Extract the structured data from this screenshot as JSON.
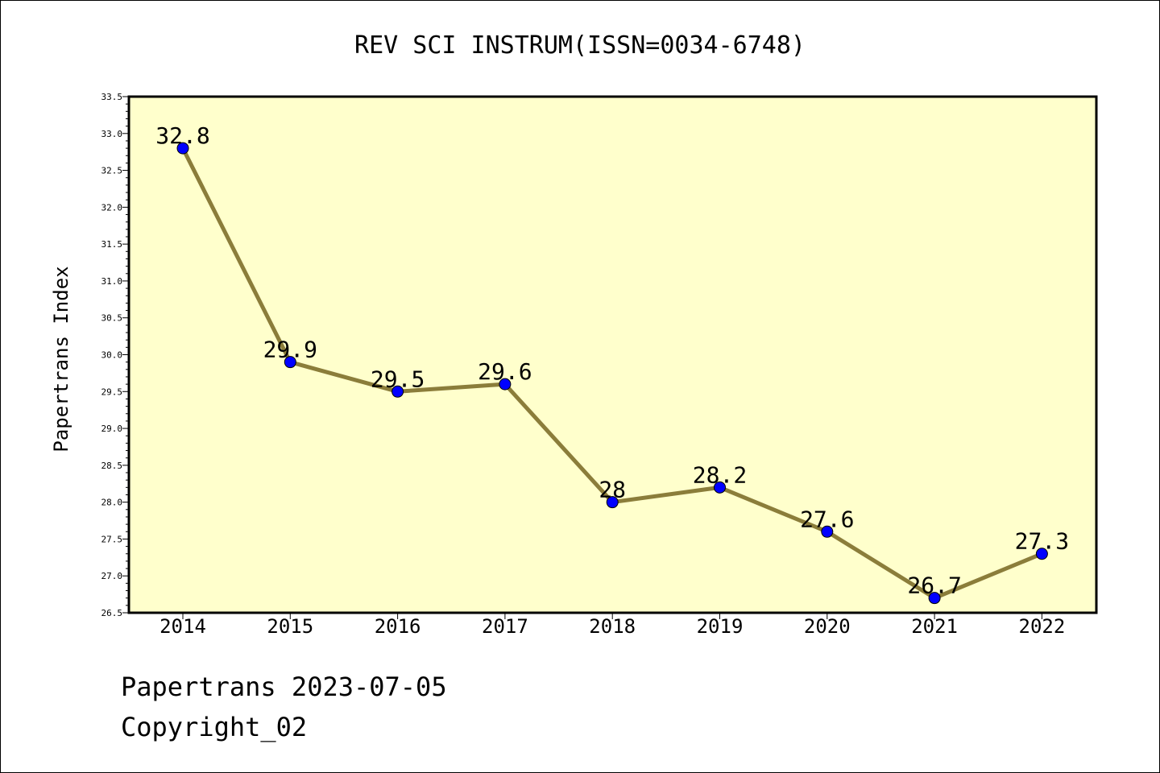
{
  "chart_data": {
    "type": "line",
    "title": "REV SCI INSTRUM(ISSN=0034-6748)",
    "xlabel": "",
    "ylabel": "Papertrans Index",
    "categories": [
      "2014",
      "2015",
      "2016",
      "2017",
      "2018",
      "2019",
      "2020",
      "2021",
      "2022"
    ],
    "series": [
      {
        "values": [
          32.8,
          29.9,
          29.5,
          29.6,
          28.0,
          28.2,
          27.6,
          26.7,
          27.3
        ],
        "labels": [
          "32.8",
          "29.9",
          "29.5",
          "29.6",
          "28",
          "28.2",
          "27.6",
          "26.7",
          "27.3"
        ]
      }
    ],
    "ylim": [
      26.5,
      33.5
    ],
    "yticks": [
      "26.5",
      "27.0",
      "27.5",
      "28.0",
      "28.5",
      "29.0",
      "29.5",
      "30.0",
      "30.5",
      "31.0",
      "31.5",
      "32.0",
      "32.5",
      "33.0",
      "33.5"
    ],
    "grid": false,
    "colors": {
      "plot_background": "#ffffcc",
      "line": "#8b7d3a",
      "marker": "#0000ff"
    }
  },
  "footer": {
    "line1": "Papertrans 2023-07-05",
    "line2": "Copyright_02"
  }
}
